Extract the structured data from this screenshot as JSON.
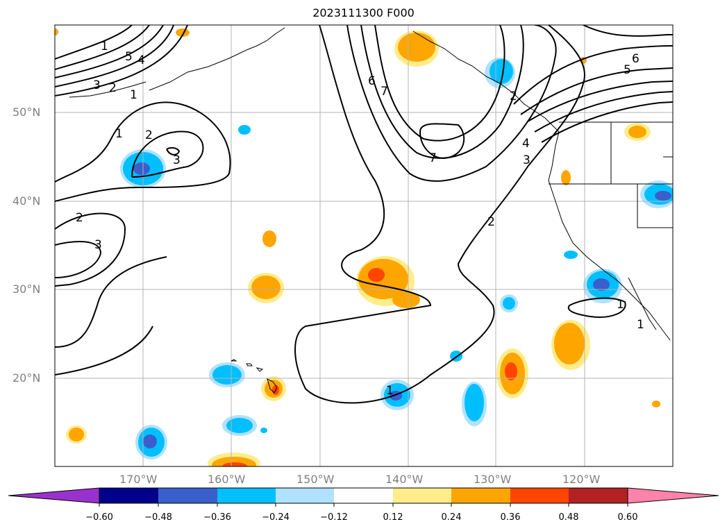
{
  "title": "2023111300 F000",
  "lat_labels": [
    "50°N",
    "40°N",
    "30°N",
    "20°N"
  ],
  "lon_labels": [
    "170°W",
    "160°W",
    "150°W",
    "140°W",
    "130°W",
    "120°W"
  ],
  "colorbar": {
    "ticks": [
      "−0.60",
      "−0.48",
      "−0.36",
      "−0.24",
      "−0.12",
      "0.12",
      "0.24",
      "0.36",
      "0.48",
      "0.60"
    ],
    "colors": [
      "#9932cc",
      "#00008b",
      "#3a5fcd",
      "#00bfff",
      "#b0e2ff",
      "#ffffff",
      "#ffec8b",
      "#ffa500",
      "#ff4500",
      "#b22222",
      "#ff82ab"
    ]
  },
  "contour_labels": [
    "1",
    "5",
    "4",
    "3",
    "2",
    "1",
    "6",
    "7",
    "6",
    "5",
    "4",
    "3",
    "2",
    "1",
    "2",
    "3",
    "2",
    "3",
    "7",
    "2",
    "1",
    "1",
    "1"
  ]
}
